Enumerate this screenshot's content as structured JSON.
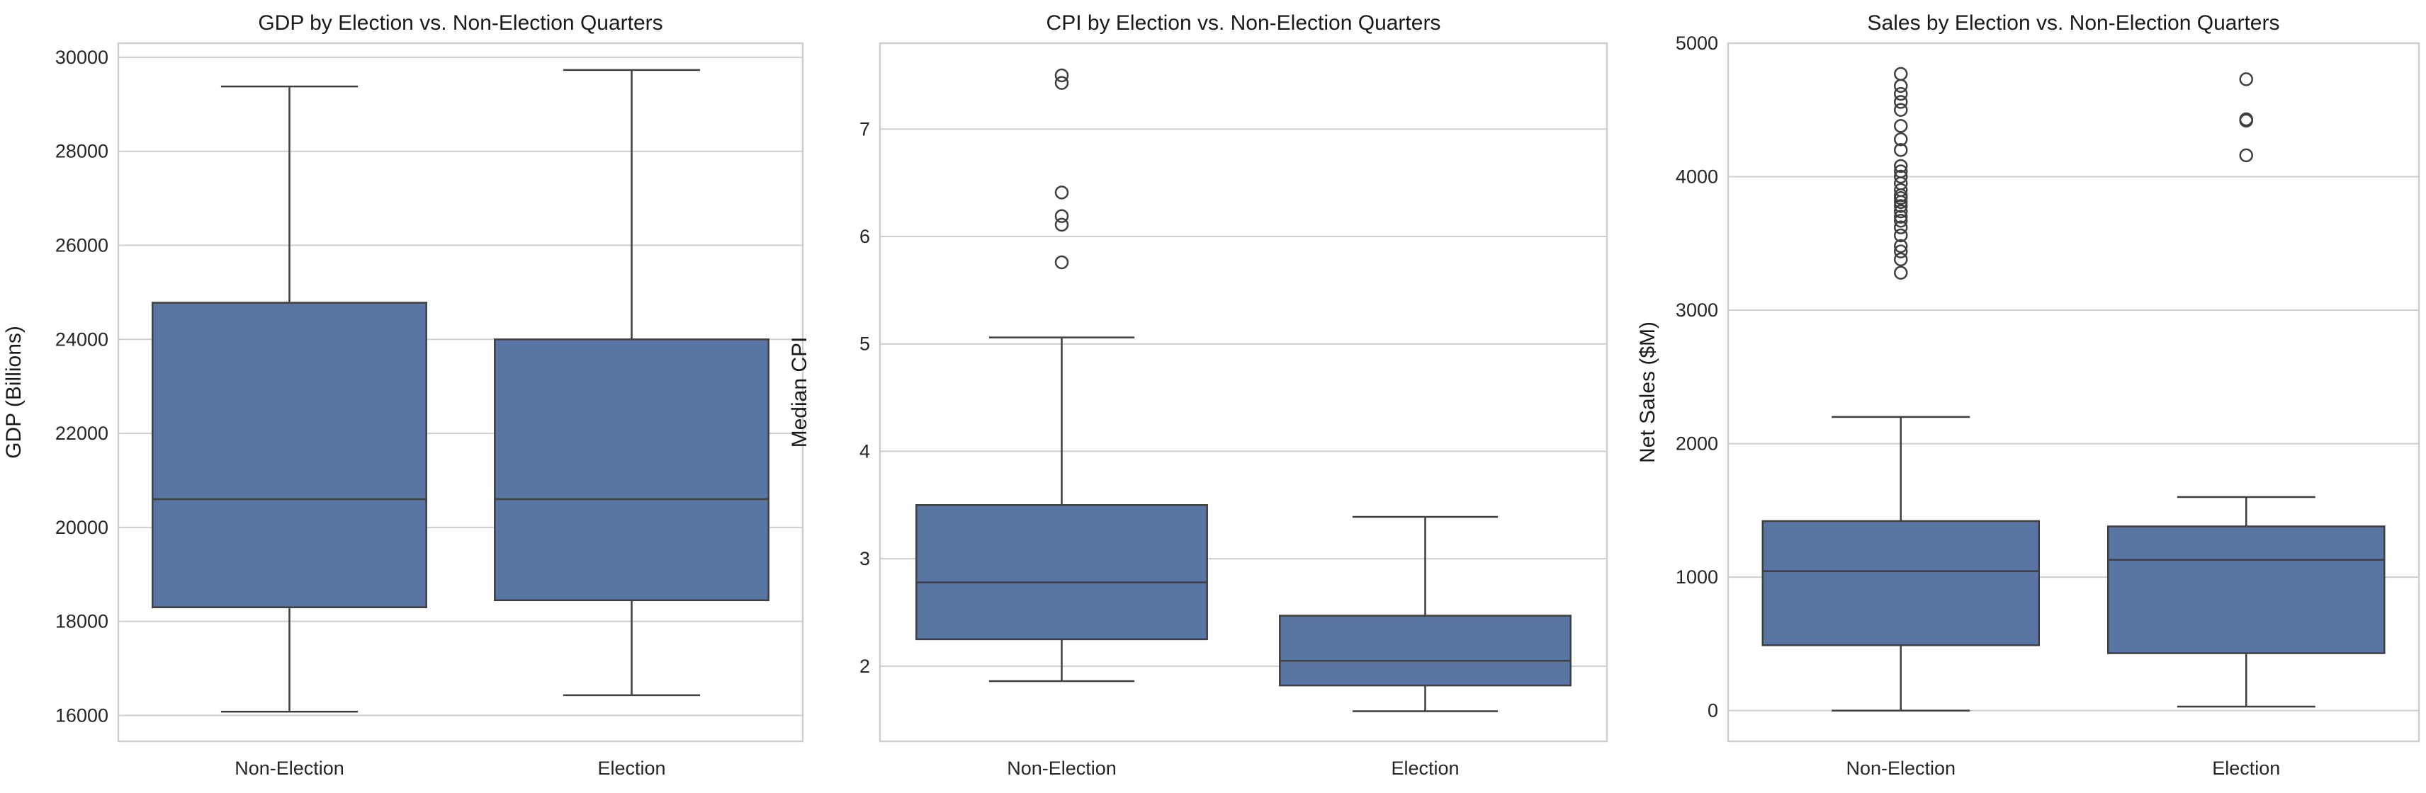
{
  "chart_data": [
    {
      "type": "box",
      "title": "GDP by Election vs. Non-Election Quarters",
      "xlabel": "",
      "ylabel": "GDP (Billions)",
      "categories": [
        "Non-Election",
        "Election"
      ],
      "ylim": [
        15450,
        30300
      ],
      "yticks": [
        16000,
        18000,
        20000,
        22000,
        24000,
        26000,
        28000,
        30000
      ],
      "grid": "horizontal",
      "fill_color": "#5875a4",
      "line_color": "#3f3f3f",
      "boxes": [
        {
          "category": "Non-Election",
          "whisker_low": 16080,
          "q1": 18300,
          "median": 20600,
          "q3": 24780,
          "whisker_high": 29380,
          "outliers": []
        },
        {
          "category": "Election",
          "whisker_low": 16430,
          "q1": 18450,
          "median": 20600,
          "q3": 24000,
          "whisker_high": 29730,
          "outliers": []
        }
      ]
    },
    {
      "type": "box",
      "title": "CPI by Election vs. Non-Election Quarters",
      "xlabel": "",
      "ylabel": "Median CPI",
      "categories": [
        "Non-Election",
        "Election"
      ],
      "ylim": [
        1.3,
        7.8
      ],
      "yticks": [
        2,
        3,
        4,
        5,
        6,
        7
      ],
      "grid": "horizontal",
      "fill_color": "#5875a4",
      "line_color": "#3f3f3f",
      "boxes": [
        {
          "category": "Non-Election",
          "whisker_low": 1.86,
          "q1": 2.25,
          "median": 2.78,
          "q3": 3.5,
          "whisker_high": 5.06,
          "outliers": [
            5.76,
            6.11,
            6.19,
            6.41,
            7.43,
            7.5
          ]
        },
        {
          "category": "Election",
          "whisker_low": 1.58,
          "q1": 1.82,
          "median": 2.05,
          "q3": 2.47,
          "whisker_high": 3.39,
          "outliers": []
        }
      ]
    },
    {
      "type": "box",
      "title": "Sales by Election vs. Non-Election Quarters",
      "xlabel": "",
      "ylabel": "Net Sales ($M)",
      "categories": [
        "Non-Election",
        "Election"
      ],
      "ylim": [
        -230,
        5000
      ],
      "yticks": [
        0,
        1000,
        2000,
        3000,
        4000,
        5000
      ],
      "grid": "horizontal",
      "fill_color": "#5875a4",
      "line_color": "#3f3f3f",
      "boxes": [
        {
          "category": "Non-Election",
          "whisker_low": 0,
          "q1": 490,
          "median": 1045,
          "q3": 1420,
          "whisker_high": 2200,
          "outliers": [
            3280,
            3380,
            3440,
            3480,
            3560,
            3620,
            3670,
            3700,
            3740,
            3780,
            3810,
            3840,
            3860,
            3900,
            3950,
            4000,
            4040,
            4080,
            4200,
            4280,
            4380,
            4500,
            4560,
            4620,
            4680,
            4770
          ]
        },
        {
          "category": "Election",
          "whisker_low": 30,
          "q1": 430,
          "median": 1130,
          "q3": 1380,
          "whisker_high": 1600,
          "outliers": [
            4160,
            4420,
            4430,
            4730
          ]
        }
      ]
    }
  ]
}
